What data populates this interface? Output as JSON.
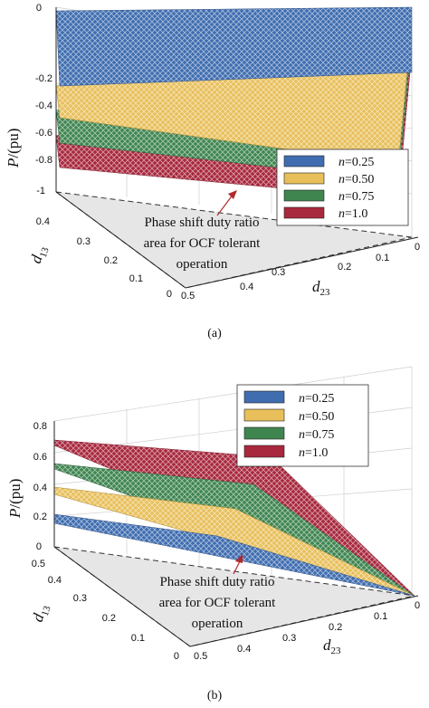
{
  "chart_data": [
    {
      "type": "surface",
      "caption": "(a)",
      "zlabel": "P",
      "zlabel_unit": "/(pu)",
      "xlabel_main": "d",
      "xlabel_sub": "23",
      "ylabel_main": "d",
      "ylabel_sub": "13",
      "z_ticks": [
        "0",
        "-0.2",
        "-0.4",
        "-0.6",
        "-0.8",
        "-1"
      ],
      "d13_ticks": [
        "0.4",
        "0.3",
        "0.2",
        "0.1",
        "0"
      ],
      "d23_ticks": [
        "0.5",
        "0.4",
        "0.3",
        "0.2",
        "0.1",
        "0"
      ],
      "annotation": [
        "Phase shift duty ratio",
        "area for OCF tolerant",
        "operation"
      ],
      "legend_position": "right",
      "legend": [
        {
          "n_label": "n",
          "value": "=0.25",
          "color": "#3f6db0"
        },
        {
          "n_label": "n",
          "value": "=0.50",
          "color": "#e8bf5a"
        },
        {
          "n_label": "n",
          "value": "=0.75",
          "color": "#3f8550"
        },
        {
          "n_label": "n",
          "value": "=1.0",
          "color": "#a8283e"
        }
      ],
      "series_corner_values": [
        {
          "n": 0.25,
          "z_at_d13max_d23max": -0.25,
          "z_at_origin": 0
        },
        {
          "n": 0.5,
          "z_at_d13max_d23max": -0.45,
          "z_at_origin": 0
        },
        {
          "n": 0.75,
          "z_at_d13max_d23max": -0.6,
          "z_at_origin": 0
        },
        {
          "n": 1.0,
          "z_at_d13max_d23max": -0.75,
          "z_at_origin": 0
        }
      ]
    },
    {
      "type": "surface",
      "caption": "(b)",
      "zlabel": "P",
      "zlabel_unit": "/(pu)",
      "xlabel_main": "d",
      "xlabel_sub": "23",
      "ylabel_main": "d",
      "ylabel_sub": "13",
      "z_ticks": [
        "0.8",
        "0.6",
        "0.4",
        "0.2",
        "0"
      ],
      "d13_ticks": [
        "0.5",
        "0.4",
        "0.3",
        "0.2",
        "0.1",
        "0"
      ],
      "d23_ticks": [
        "0.5",
        "0.4",
        "0.3",
        "0.2",
        "0.1",
        "0"
      ],
      "annotation": [
        "Phase shift duty ratio",
        "area for OCF tolerant",
        "operation"
      ],
      "legend_position": "top-right",
      "legend": [
        {
          "n_label": "n",
          "value": "=0.25",
          "color": "#3f6db0"
        },
        {
          "n_label": "n",
          "value": "=0.50",
          "color": "#e8bf5a"
        },
        {
          "n_label": "n",
          "value": "=0.75",
          "color": "#3f8550"
        },
        {
          "n_label": "n",
          "value": "=1.0",
          "color": "#a8283e"
        }
      ],
      "series_corner_values": [
        {
          "n": 0.25,
          "z_at_d13max_d23max": 0.2,
          "z_at_origin": 0
        },
        {
          "n": 0.5,
          "z_at_d13max_d23max": 0.38,
          "z_at_origin": 0
        },
        {
          "n": 0.75,
          "z_at_d13max_d23max": 0.56,
          "z_at_origin": 0
        },
        {
          "n": 1.0,
          "z_at_d13max_d23max": 0.72,
          "z_at_origin": 0
        }
      ]
    }
  ]
}
